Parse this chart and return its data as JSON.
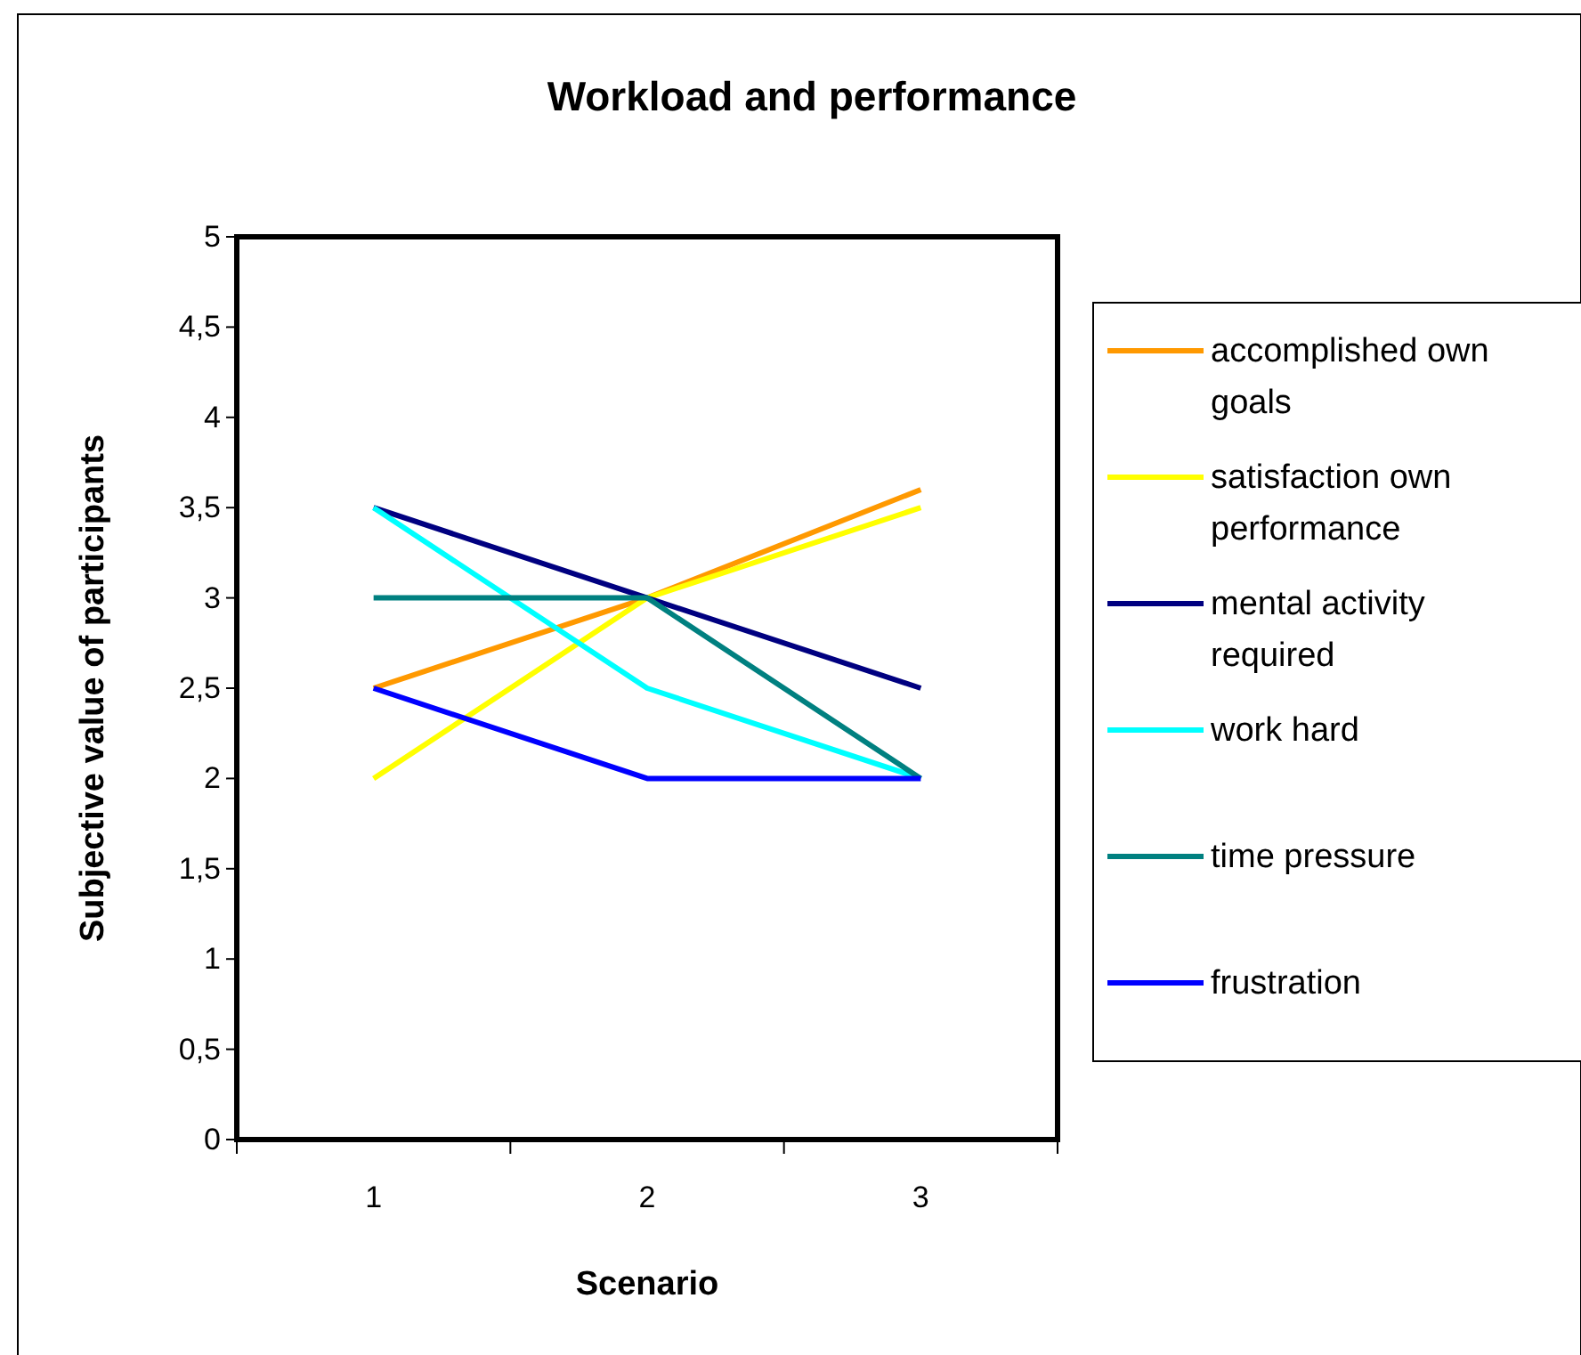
{
  "chart_data": {
    "type": "line",
    "title": "Workload and performance",
    "xlabel": "Scenario",
    "ylabel": "Subjective value of participants",
    "categories": [
      "1",
      "2",
      "3"
    ],
    "series": [
      {
        "name": "accomplished own goals",
        "color": "#ff9900",
        "values": [
          2.5,
          3,
          3.6
        ]
      },
      {
        "name": "satisfaction own performance",
        "color": "#ffff00",
        "values": [
          2,
          3,
          3.5
        ]
      },
      {
        "name": "mental activity required",
        "color": "#000080",
        "values": [
          3.5,
          3,
          2.5
        ]
      },
      {
        "name": "work hard",
        "color": "#00ffff",
        "values": [
          3.5,
          2.5,
          2
        ]
      },
      {
        "name": "time pressure",
        "color": "#008080",
        "values": [
          3,
          3,
          2
        ]
      },
      {
        "name": "frustration",
        "color": "#0000ff",
        "values": [
          2.5,
          2,
          2
        ]
      }
    ],
    "ylim": [
      0,
      5
    ],
    "yticks": [
      0,
      {
        "value": 0.5,
        "label": "0,5"
      },
      1,
      {
        "value": 1.5,
        "label": "1,5"
      },
      2,
      {
        "value": 2.5,
        "label": "2,5"
      },
      3,
      {
        "value": 3.5,
        "label": "3,5"
      },
      4,
      {
        "value": 4.5,
        "label": "4,5"
      },
      5
    ],
    "grid": false,
    "legend": "right",
    "marker": "none",
    "line_style": "solid"
  }
}
